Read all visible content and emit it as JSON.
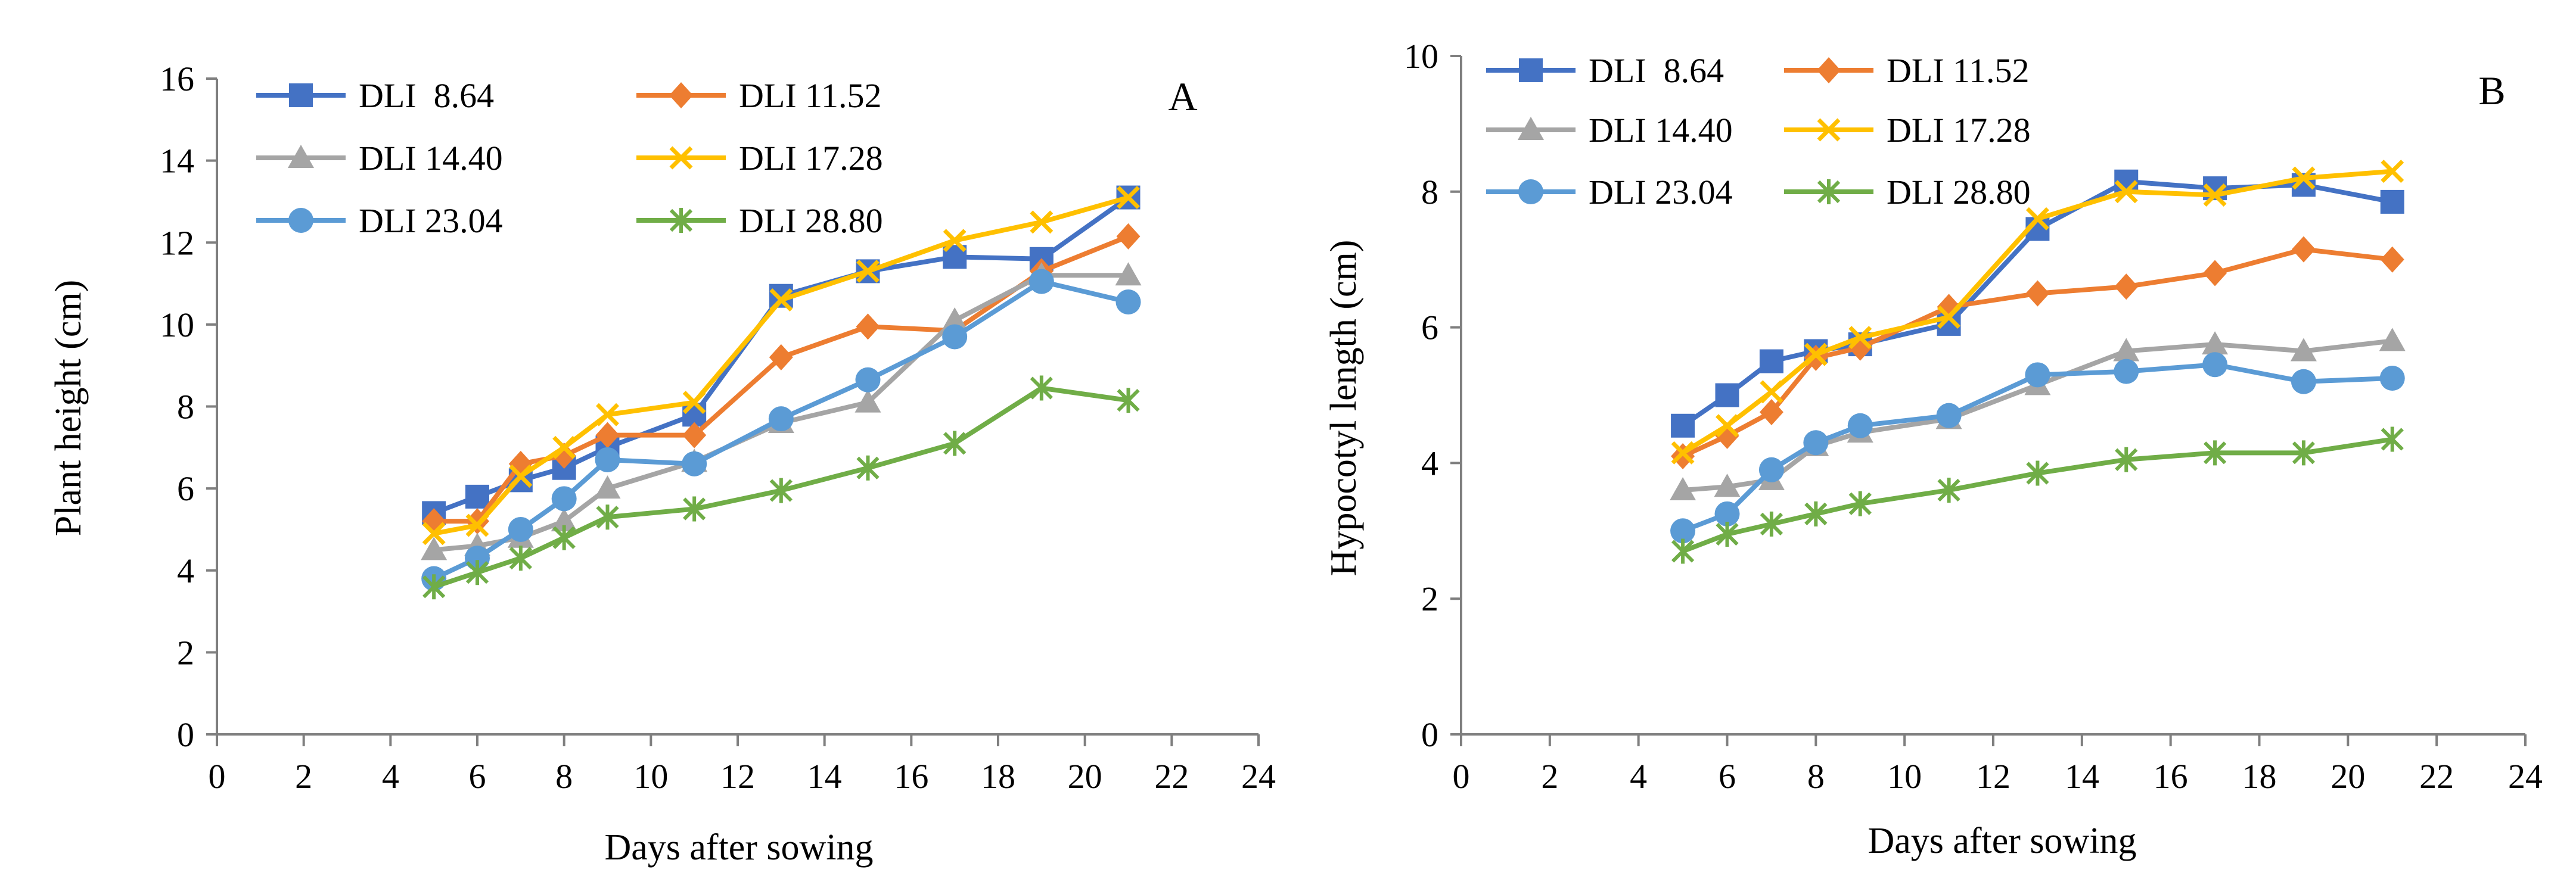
{
  "chart_data": [
    {
      "type": "line",
      "panel_label": "A",
      "title": "",
      "xlabel": "Days after sowing",
      "ylabel": "Plant height (cm)",
      "xlim": [
        0,
        24
      ],
      "ylim": [
        0,
        16
      ],
      "xticks": [
        "0",
        "2",
        "4",
        "6",
        "8",
        "10",
        "12",
        "14",
        "16",
        "18",
        "20",
        "22",
        "24"
      ],
      "yticks": [
        "0",
        "2",
        "4",
        "6",
        "8",
        "10",
        "12",
        "14",
        "16"
      ],
      "grid": false,
      "legend_position": "top-left",
      "x": [
        5,
        6,
        7,
        8,
        9,
        11,
        13,
        15,
        17,
        19,
        21
      ],
      "series": [
        {
          "name": "DLI  8.64",
          "color": "#4472C4",
          "marker": "square",
          "values": [
            5.4,
            5.8,
            6.2,
            6.5,
            7.0,
            7.8,
            10.7,
            11.3,
            11.65,
            11.6,
            13.1
          ]
        },
        {
          "name": "DLI 11.52",
          "color": "#ED7D31",
          "marker": "diamond",
          "values": [
            5.2,
            5.2,
            6.6,
            6.8,
            7.3,
            7.3,
            9.2,
            9.95,
            9.85,
            11.3,
            12.15
          ]
        },
        {
          "name": "DLI 14.40",
          "color": "#A5A5A5",
          "marker": "triangle",
          "values": [
            4.5,
            4.6,
            4.8,
            5.2,
            6.0,
            6.65,
            7.6,
            8.1,
            10.1,
            11.2,
            11.2
          ]
        },
        {
          "name": "DLI 17.28",
          "color": "#FFC000",
          "marker": "x",
          "values": [
            4.9,
            5.1,
            6.3,
            7.0,
            7.8,
            8.1,
            10.6,
            11.3,
            12.05,
            12.5,
            13.1
          ]
        },
        {
          "name": "DLI 23.04",
          "color": "#5B9BD5",
          "marker": "circle",
          "values": [
            3.8,
            4.3,
            5.0,
            5.75,
            6.7,
            6.6,
            7.7,
            8.65,
            9.7,
            11.05,
            10.55
          ]
        },
        {
          "name": "DLI 28.80",
          "color": "#70AD47",
          "marker": "star",
          "values": [
            3.6,
            3.95,
            4.3,
            4.8,
            5.3,
            5.5,
            5.95,
            6.5,
            7.1,
            8.45,
            8.15
          ]
        }
      ]
    },
    {
      "type": "line",
      "panel_label": "B",
      "title": "",
      "xlabel": "Days after sowing",
      "ylabel": "Hypocotyl length (cm)",
      "xlim": [
        0,
        24
      ],
      "ylim": [
        0,
        10
      ],
      "xticks": [
        "0",
        "2",
        "4",
        "6",
        "8",
        "10",
        "12",
        "14",
        "16",
        "18",
        "20",
        "22",
        "24"
      ],
      "yticks": [
        "0",
        "2",
        "4",
        "6",
        "8",
        "10"
      ],
      "grid": false,
      "legend_position": "top-left",
      "x": [
        5,
        6,
        7,
        8,
        9,
        11,
        13,
        15,
        17,
        19,
        21
      ],
      "series": [
        {
          "name": "DLI  8.64",
          "color": "#4472C4",
          "marker": "square",
          "values": [
            4.55,
            5.0,
            5.5,
            5.65,
            5.75,
            6.05,
            7.45,
            8.15,
            8.05,
            8.1,
            7.85
          ]
        },
        {
          "name": "DLI 11.52",
          "color": "#ED7D31",
          "marker": "diamond",
          "values": [
            4.1,
            4.4,
            4.75,
            5.55,
            5.7,
            6.3,
            6.5,
            6.6,
            6.8,
            7.15,
            7.0
          ]
        },
        {
          "name": "DLI 14.40",
          "color": "#A5A5A5",
          "marker": "triangle",
          "values": [
            3.6,
            3.65,
            3.75,
            4.25,
            4.45,
            4.65,
            5.15,
            5.65,
            5.75,
            5.65,
            5.8
          ]
        },
        {
          "name": "DLI 17.28",
          "color": "#FFC000",
          "marker": "x",
          "values": [
            4.15,
            4.55,
            5.05,
            5.6,
            5.85,
            6.15,
            7.6,
            8.0,
            7.95,
            8.2,
            8.3
          ]
        },
        {
          "name": "DLI 23.04",
          "color": "#5B9BD5",
          "marker": "circle",
          "values": [
            3.0,
            3.25,
            3.9,
            4.3,
            4.55,
            4.7,
            5.3,
            5.35,
            5.45,
            5.2,
            5.25
          ]
        },
        {
          "name": "DLI 28.80",
          "color": "#70AD47",
          "marker": "star",
          "values": [
            2.7,
            2.95,
            3.1,
            3.25,
            3.4,
            3.6,
            3.85,
            4.05,
            4.15,
            4.15,
            4.35
          ]
        }
      ]
    }
  ]
}
